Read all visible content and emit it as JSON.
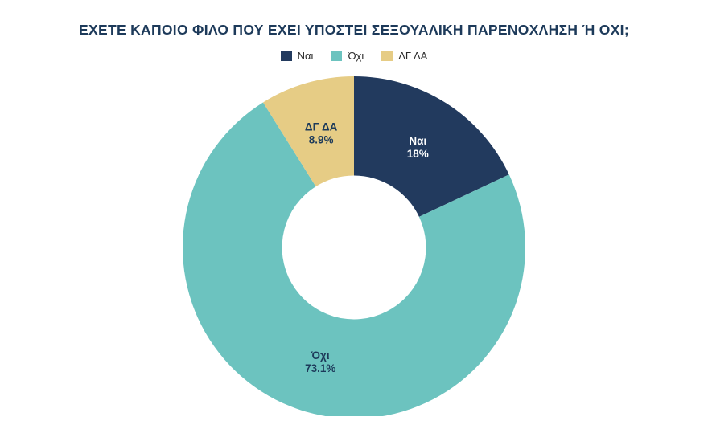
{
  "title": "ΕΧΕΤΕ ΚΑΠΟΙΟ ΦΙΛΟ ΠΟΥ ΕΧΕΙ ΥΠΟΣΤΕΙ ΣΕΞΟΥΑΛΙΚΗ ΠΑΡΕΝΟΧΛΗΣΗ Ή ΟΧΙ;",
  "chart_data": {
    "type": "pie",
    "subtype": "donut",
    "title": "ΕΧΕΤΕ ΚΑΠΟΙΟ ΦΙΛΟ ΠΟΥ ΕΧΕΙ ΥΠΟΣΤΕΙ ΣΕΞΟΥΑΛΙΚΗ ΠΑΡΕΝΟΧΛΗΣΗ Ή ΟΧΙ;",
    "categories": [
      "Ναι",
      "Όχι",
      "ΔΓ ΔΑ"
    ],
    "values": [
      18,
      73.1,
      8.9
    ],
    "value_labels": [
      "18%",
      "73.1%",
      "8.9%"
    ],
    "colors": [
      "#223a5e",
      "#6cc3bf",
      "#e6cc85"
    ],
    "label_colors": [
      "#ffffff",
      "#1d3a5a",
      "#1d3a5a"
    ],
    "legend_position": "top",
    "start_angle_deg": 0,
    "direction": "clockwise",
    "inner_radius_ratio": 0.42,
    "grid": false
  }
}
